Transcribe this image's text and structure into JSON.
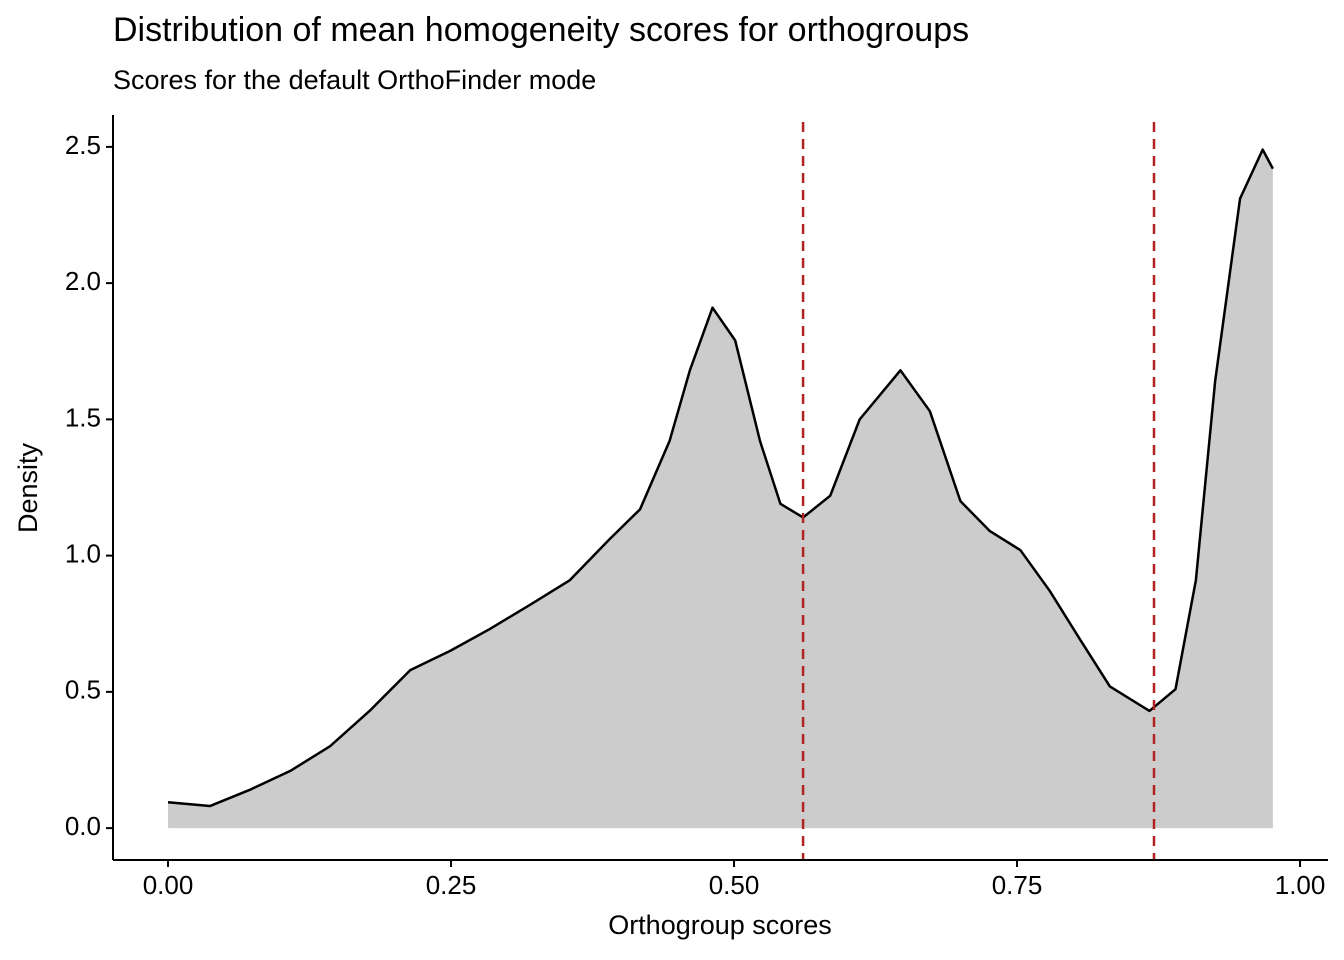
{
  "chart_data": {
    "type": "density",
    "title": "Distribution of mean homogeneity scores for orthogroups",
    "subtitle": "Scores for the default OrthoFinder mode",
    "x_label": "Orthogroup scores",
    "y_label": "Density",
    "x": [
      0,
      0.037,
      0.072,
      0.108,
      0.143,
      0.178,
      0.214,
      0.249,
      0.284,
      0.32,
      0.355,
      0.39,
      0.417,
      0.443,
      0.461,
      0.481,
      0.501,
      0.523,
      0.541,
      0.561,
      0.585,
      0.611,
      0.647,
      0.673,
      0.7,
      0.726,
      0.753,
      0.779,
      0.806,
      0.832,
      0.867,
      0.89,
      0.908,
      0.925,
      0.947,
      0.967,
      0.976
    ],
    "y": [
      0.095,
      0.081,
      0.14,
      0.21,
      0.3,
      0.43,
      0.58,
      0.65,
      0.73,
      0.82,
      0.91,
      1.06,
      1.17,
      1.42,
      1.68,
      1.91,
      1.79,
      1.42,
      1.19,
      1.14,
      1.22,
      1.5,
      1.68,
      1.53,
      1.2,
      1.09,
      1.02,
      0.87,
      0.69,
      0.52,
      0.43,
      0.51,
      0.91,
      1.64,
      2.31,
      2.49,
      2.42
    ],
    "fill": "#cccccc",
    "color": "#000000",
    "vlines": [
      0.561,
      0.871
    ],
    "vline_color": "#b22222",
    "xlim": [
      -0.0486,
      1.0247
    ],
    "ylim": [
      -0.117,
      2.617
    ],
    "xticks": [
      {
        "value": 0,
        "label": "0.00"
      },
      0.25,
      {
        "value": 0.5,
        "label": "0.50"
      },
      0.75,
      {
        "value": 1,
        "label": "1.00"
      }
    ],
    "yticks": [
      {
        "value": 0,
        "label": "0.0"
      },
      0.5,
      {
        "value": 1,
        "label": "1.0"
      },
      1.5,
      {
        "value": 2,
        "label": "2.0"
      },
      2.5
    ]
  }
}
